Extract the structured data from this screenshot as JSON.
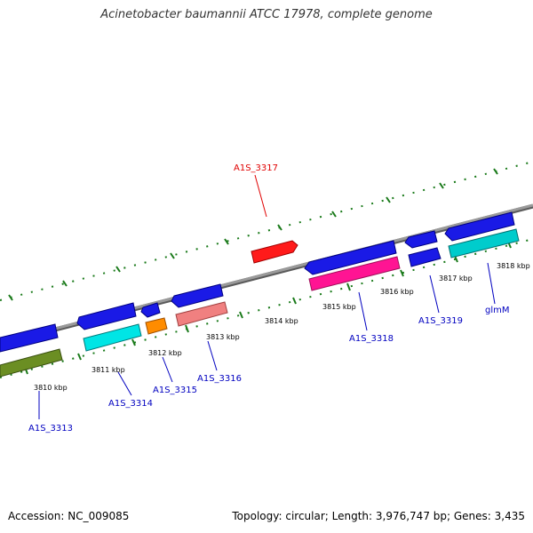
{
  "title": "Acinetobacter baumannii ATCC 17978, complete genome",
  "footer": {
    "accession": "Accession: NC_009085",
    "summary": "Topology: circular; Length: 3,976,747 bp; Genes: 3,435"
  },
  "colors": {
    "backbone": "#808080",
    "tick": "#1a7a1a",
    "label_default": "#0000c0",
    "label_highlight": "#e00000"
  },
  "ruler_labels": [
    "3810 kbp",
    "3811 kbp",
    "3812 kbp",
    "3813 kbp",
    "3814 kbp",
    "3815 kbp",
    "3816 kbp",
    "3817 kbp",
    "3818 kbp"
  ],
  "gene_labels": [
    {
      "text": "A1S_3313",
      "color": "#0000c0"
    },
    {
      "text": "A1S_3314",
      "color": "#0000c0"
    },
    {
      "text": "A1S_3315",
      "color": "#0000c0"
    },
    {
      "text": "A1S_3316",
      "color": "#0000c0"
    },
    {
      "text": "A1S_3317",
      "color": "#e00000"
    },
    {
      "text": "A1S_3318",
      "color": "#0000c0"
    },
    {
      "text": "A1S_3319",
      "color": "#0000c0"
    },
    {
      "text": "glmM",
      "color": "#0000c0"
    }
  ]
}
